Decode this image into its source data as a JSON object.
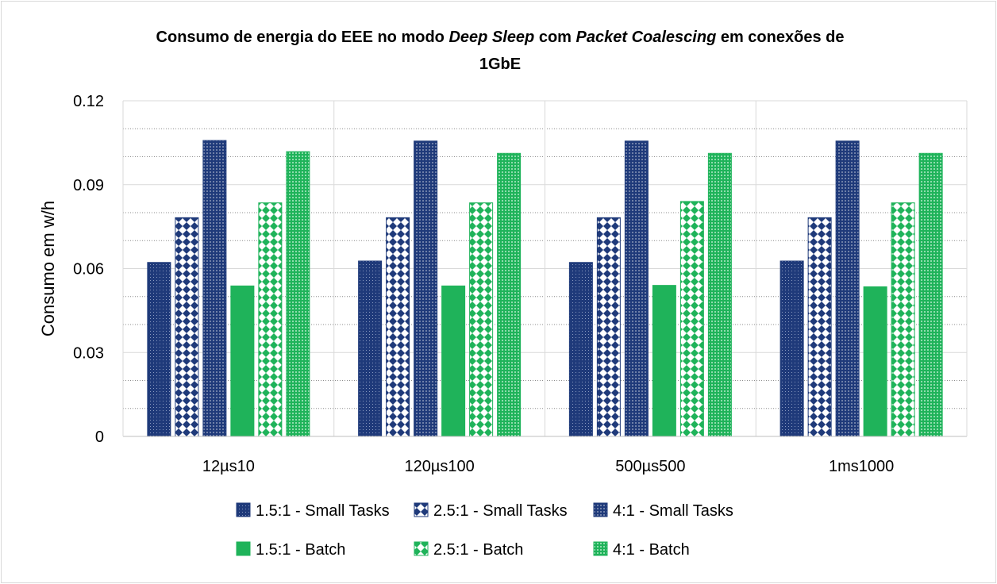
{
  "chart_data": {
    "type": "bar",
    "title": {
      "part1": "Consumo de energia do EEE no modo ",
      "em1": "Deep Sleep",
      "part2": " com ",
      "em2": "Packet Coalescing",
      "part3": " em conexões de",
      "line2": "1GbE"
    },
    "ylabel": "Consumo em w/h",
    "xlabel": "",
    "ylim": [
      0,
      0.12
    ],
    "yticks": [
      "0",
      "0.03",
      "0.06",
      "0.09",
      "0.12"
    ],
    "grid": true,
    "legend_position": "bottom",
    "categories": [
      "12µs10",
      "120µs100",
      "500µs500",
      "1ms1000"
    ],
    "series": [
      {
        "name": "1.5:1 - Small Tasks",
        "color": "#1f3a7a",
        "pattern": "dots",
        "values": [
          0.0622,
          0.0627,
          0.0622,
          0.0627
        ]
      },
      {
        "name": "2.5:1 - Small Tasks",
        "color": "#1f3a7a",
        "pattern": "checker",
        "values": [
          0.0782,
          0.0782,
          0.0782,
          0.0782
        ]
      },
      {
        "name": "4:1 - Small Tasks",
        "color": "#1f3a7a",
        "pattern": "mesh",
        "values": [
          0.1058,
          0.1056,
          0.1056,
          0.1056
        ]
      },
      {
        "name": "1.5:1 - Batch",
        "color": "#1fb35a",
        "pattern": "solid",
        "values": [
          0.0538,
          0.0538,
          0.054,
          0.0535
        ]
      },
      {
        "name": "2.5:1 - Batch",
        "color": "#1fb35a",
        "pattern": "checker",
        "values": [
          0.0835,
          0.0835,
          0.084,
          0.0835
        ]
      },
      {
        "name": "4:1 - Batch",
        "color": "#1fb35a",
        "pattern": "mesh",
        "values": [
          0.1018,
          0.1012,
          0.1012,
          0.1012
        ]
      }
    ]
  }
}
